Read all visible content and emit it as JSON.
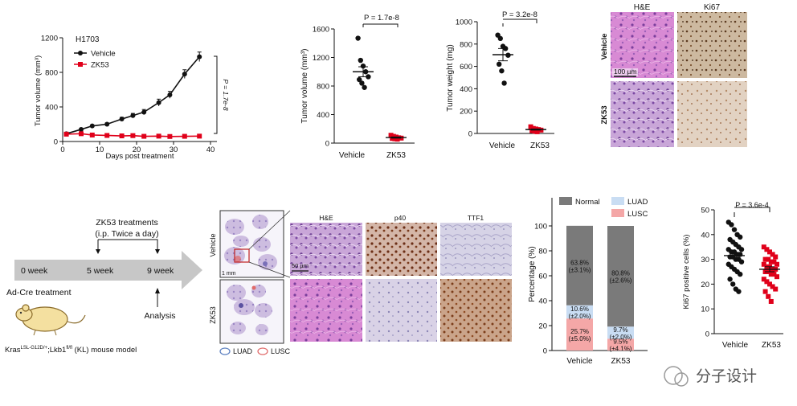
{
  "figure": {
    "panel_a": {
      "cell_line": "H1703",
      "legend": [
        {
          "label": "Vehicle",
          "color": "#111111"
        },
        {
          "label": "ZK53",
          "color": "#e0001a"
        }
      ],
      "ylabel": "Tumor volume (mm³)",
      "xlabel": "Days post treatment",
      "yticks": [
        "0",
        "400",
        "800",
        "1200"
      ],
      "xticks": [
        "0",
        "10",
        "20",
        "30",
        "40"
      ],
      "pvalue": "P = 1.7e-8"
    },
    "panel_b": {
      "ylabel": "Tumor volume (mm³)",
      "yticks": [
        "0",
        "400",
        "800",
        "1200",
        "1600"
      ],
      "categories": [
        "Vehicle",
        "ZK53"
      ],
      "pvalue": "P = 1.7e-8"
    },
    "panel_c": {
      "ylabel": "Tumor weight (mg)",
      "yticks": [
        "0",
        "200",
        "400",
        "600",
        "800",
        "1000"
      ],
      "categories": [
        "Vehicle",
        "ZK53"
      ],
      "pvalue": "P = 3.2e-8"
    },
    "panel_d": {
      "col_labels": [
        "H&E",
        "Ki67"
      ],
      "row_labels": [
        "Vehicle",
        "ZK53"
      ],
      "scale": "100 µm"
    },
    "timeline": {
      "weeks": [
        "0 week",
        "5 week",
        "9 week"
      ],
      "treatment_line1": "ZK53 treatments",
      "treatment_line2": "(i.p. Twice a day)",
      "analysis": "Analysis",
      "adcre": "Ad-Cre treatment",
      "model_kras": "Kras",
      "model_kras_sup": "LSL-G12D/+",
      "model_lkb": ";Lkb1",
      "model_lkb_sup": "fl/fl",
      "model_rest": " (KL) mouse model"
    },
    "panel_e": {
      "row_labels": [
        "Vehicle",
        "ZK53"
      ],
      "col_labels": [
        "H&E",
        "p40",
        "TTF1"
      ],
      "scale_small": "1 mm",
      "scale_large": "50 µm",
      "legend": [
        {
          "label": "LUAD",
          "color": "#5b7fc0"
        },
        {
          "label": "LUSC",
          "color": "#e06a6a"
        }
      ]
    },
    "panel_f": {
      "ylabel": "Percentage (%)",
      "yticks": [
        "0",
        "20",
        "40",
        "60",
        "80",
        "100"
      ],
      "legend": [
        {
          "label": "Normal",
          "color": "#7a7a7a"
        },
        {
          "label": "LUAD",
          "color": "#c9ddf3"
        },
        {
          "label": "LUSC",
          "color": "#f4a7a7"
        }
      ],
      "bars": [
        {
          "label": "Vehicle",
          "lusc": 25.7,
          "luad": 10.6,
          "normal": 63.8,
          "lusc_text": "25.7%",
          "lusc_sd": "(±5.0%)",
          "luad_text": "10.6%",
          "luad_sd": "(±2.0%)",
          "normal_text": "63.8%",
          "normal_sd": "(±3.1%)"
        },
        {
          "label": "ZK53",
          "lusc": 9.5,
          "luad": 9.7,
          "normal": 80.8,
          "lusc_text": "9.5%",
          "lusc_sd": "(±4.1%)",
          "luad_text": "9.7%",
          "luad_sd": "(±2.0%)",
          "normal_text": "80.8%",
          "normal_sd": "(±2.6%)"
        }
      ]
    },
    "panel_g": {
      "ylabel": "Ki67 positive cells (%)",
      "yticks": [
        "0",
        "10",
        "20",
        "30",
        "40",
        "50"
      ],
      "categories": [
        "Vehicle",
        "ZK53"
      ],
      "pvalue": "P = 3.6e-4"
    },
    "watermark": "分子设计"
  },
  "chart_data": [
    {
      "type": "line",
      "title": "H1703",
      "xlabel": "Days post treatment",
      "ylabel": "Tumor volume (mm³)",
      "xlim": [
        0,
        40
      ],
      "ylim": [
        0,
        1200
      ],
      "series": [
        {
          "name": "Vehicle",
          "x": [
            1,
            5,
            8,
            12,
            16,
            19,
            22,
            26,
            29,
            33,
            37
          ],
          "y": [
            90,
            140,
            180,
            200,
            260,
            300,
            340,
            450,
            540,
            780,
            980
          ],
          "err": [
            8,
            10,
            12,
            15,
            20,
            25,
            30,
            40,
            40,
            50,
            55
          ]
        },
        {
          "name": "ZK53",
          "x": [
            1,
            5,
            8,
            12,
            16,
            19,
            22,
            26,
            29,
            33,
            37
          ],
          "y": [
            85,
            90,
            75,
            70,
            65,
            68,
            60,
            62,
            58,
            60,
            62
          ],
          "err": [
            5,
            5,
            5,
            5,
            5,
            5,
            5,
            5,
            5,
            5,
            5
          ]
        }
      ]
    },
    {
      "type": "scatter",
      "ylabel": "Tumor volume (mm³)",
      "ylim": [
        0,
        1600
      ],
      "categories": [
        "Vehicle",
        "ZK53"
      ],
      "series": [
        {
          "name": "Vehicle",
          "values": [
            1470,
            1160,
            1080,
            1000,
            930,
            890,
            840,
            780
          ]
        },
        {
          "name": "ZK53",
          "values": [
            110,
            95,
            85,
            75,
            70,
            65,
            60,
            55
          ]
        }
      ],
      "means": [
        1000,
        78
      ],
      "sem": [
        70,
        8
      ]
    },
    {
      "type": "scatter",
      "ylabel": "Tumor weight (mg)",
      "ylim": [
        0,
        1000
      ],
      "categories": [
        "Vehicle",
        "ZK53"
      ],
      "series": [
        {
          "name": "Vehicle",
          "values": [
            880,
            850,
            780,
            760,
            700,
            620,
            560,
            450
          ]
        },
        {
          "name": "ZK53",
          "values": [
            60,
            45,
            40,
            35,
            30,
            25,
            20,
            15
          ]
        }
      ],
      "means": [
        705,
        35
      ],
      "sem": [
        55,
        5
      ]
    },
    {
      "type": "bar",
      "ylabel": "Percentage (%)",
      "ylim": [
        0,
        100
      ],
      "categories": [
        "Vehicle",
        "ZK53"
      ],
      "series": [
        {
          "name": "LUSC",
          "values": [
            25.7,
            9.5
          ]
        },
        {
          "name": "LUAD",
          "values": [
            10.6,
            9.7
          ]
        },
        {
          "name": "Normal",
          "values": [
            63.8,
            80.8
          ]
        }
      ]
    },
    {
      "type": "scatter",
      "ylabel": "Ki67 positive cells (%)",
      "ylim": [
        0,
        50
      ],
      "categories": [
        "Vehicle",
        "ZK53"
      ],
      "series": [
        {
          "name": "Vehicle",
          "values": [
            45,
            44,
            42,
            40,
            39,
            38,
            37,
            36,
            35,
            34,
            34,
            33,
            33,
            32,
            32,
            31,
            31,
            30,
            30,
            29,
            28,
            27,
            26,
            25,
            24,
            22,
            20,
            18,
            17
          ]
        },
        {
          "name": "ZK53",
          "values": [
            35,
            34,
            33,
            32,
            31,
            30,
            30,
            29,
            29,
            28,
            28,
            27,
            27,
            26,
            26,
            25,
            25,
            24,
            24,
            23,
            22,
            21,
            20,
            19,
            18,
            17,
            15,
            13
          ]
        }
      ],
      "means": [
        31.5,
        26
      ],
      "sem": [
        1.3,
        1.0
      ]
    }
  ]
}
